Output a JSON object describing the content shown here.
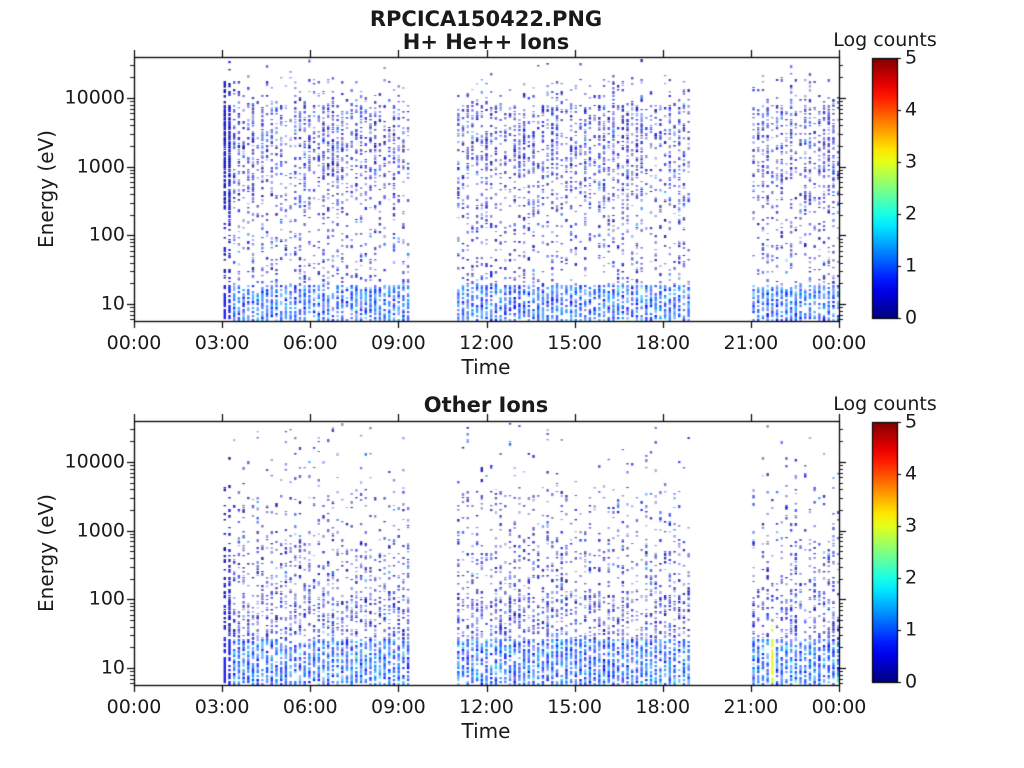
{
  "figure": {
    "suptitle": "RPCICA150422.PNG",
    "background": "#ffffff",
    "text_color": "#1a1a1a",
    "axis_color": "#000000"
  },
  "chart_data": [
    {
      "type": "heatmap",
      "title": "H+ He++ Ions",
      "xlabel": "Time",
      "ylabel": "Energy (eV)",
      "x_tick_labels": [
        "00:00",
        "03:00",
        "06:00",
        "09:00",
        "12:00",
        "15:00",
        "18:00",
        "21:00",
        "00:00"
      ],
      "x_range_hours": [
        0,
        24
      ],
      "y_scale": "log",
      "y_tick_labels": [
        "10000",
        "1000",
        "100",
        "10"
      ],
      "y_tick_values": [
        10000,
        1000,
        100,
        10
      ],
      "y_range_ev": [
        5.7,
        39500
      ],
      "grid": false,
      "colorbar": {
        "label": "Log counts",
        "tick_labels": [
          "5",
          "4",
          "3",
          "2",
          "1",
          "0"
        ],
        "tick_values": [
          5,
          4,
          3,
          2,
          1,
          0
        ],
        "range": [
          0,
          5
        ],
        "colormap": "jet",
        "stops": {
          "v0": "#000080",
          "v1": "#0000ff",
          "v2": "#00ffff",
          "v3": "#ffff00",
          "v4": "#ff0000",
          "v5": "#800000"
        }
      },
      "data_segments_hours": [
        [
          3.05,
          9.4
        ],
        [
          11.0,
          19.0
        ],
        [
          21.05,
          23.97
        ]
      ],
      "scan_period_hours": 0.16,
      "typical_log_counts": [
        0,
        1.5
      ],
      "lead_boost": 3,
      "cyan_fraction": 0.015,
      "energy_density_profile": [
        {
          "log_ev": [
            0.75,
            1.3
          ],
          "density": 0.85,
          "style": "solid-low-energy"
        },
        {
          "log_ev": [
            1.3,
            2.4
          ],
          "density": 0.22
        },
        {
          "log_ev": [
            2.4,
            2.9
          ],
          "density": 0.34
        },
        {
          "log_ev": [
            2.9,
            3.9
          ],
          "density": 0.5
        },
        {
          "log_ev": [
            3.9,
            4.3
          ],
          "density": 0.2
        },
        {
          "log_ev": [
            4.3,
            4.6
          ],
          "density": 0.07
        }
      ],
      "highlights": [],
      "seed": 42,
      "notes": "sparse vertical scan columns of blue speckles; dense dark-blue lead column at ~03:05; data gaps 00:00-03:05, 09:25-11:00, 19:00-21:00"
    },
    {
      "type": "heatmap",
      "title": "Other Ions",
      "xlabel": "Time",
      "ylabel": "Energy (eV)",
      "x_tick_labels": [
        "00:00",
        "03:00",
        "06:00",
        "09:00",
        "12:00",
        "15:00",
        "18:00",
        "21:00",
        "00:00"
      ],
      "x_range_hours": [
        0,
        24
      ],
      "y_scale": "log",
      "y_tick_labels": [
        "10000",
        "1000",
        "100",
        "10"
      ],
      "y_tick_values": [
        10000,
        1000,
        100,
        10
      ],
      "y_range_ev": [
        5.7,
        39500
      ],
      "grid": false,
      "colorbar": {
        "label": "Log counts",
        "tick_labels": [
          "5",
          "4",
          "3",
          "2",
          "1",
          "0"
        ],
        "tick_values": [
          5,
          4,
          3,
          2,
          1,
          0
        ],
        "range": [
          0,
          5
        ],
        "colormap": "jet",
        "stops": {
          "v0": "#000080",
          "v1": "#0000ff",
          "v2": "#00ffff",
          "v3": "#ffff00",
          "v4": "#ff0000",
          "v5": "#800000"
        }
      },
      "data_segments_hours": [
        [
          3.05,
          9.4
        ],
        [
          11.0,
          19.0
        ],
        [
          21.05,
          23.97
        ]
      ],
      "scan_period_hours": 0.16,
      "typical_log_counts": [
        0,
        2
      ],
      "lead_boost": 2,
      "cyan_fraction": 0.05,
      "energy_density_profile": [
        {
          "log_ev": [
            0.75,
            1.45
          ],
          "density": 0.88,
          "style": "solid-low-energy"
        },
        {
          "log_ev": [
            1.45,
            2.05
          ],
          "density": 0.5
        },
        {
          "log_ev": [
            2.05,
            2.9
          ],
          "density": 0.3
        },
        {
          "log_ev": [
            2.9,
            3.6
          ],
          "density": 0.14
        },
        {
          "log_ev": [
            3.6,
            4.6
          ],
          "density": 0.05
        }
      ],
      "highlights": [
        {
          "hours": 21.72,
          "log_ev": [
            0.8,
            1.7
          ],
          "log_counts": 3,
          "note": "yellow-green low-energy streak"
        }
      ],
      "seed": 1337,
      "notes": "counts concentrated at low energies (<100 eV), sparse speckles above 1000 eV, cyan accents near bottom"
    }
  ]
}
